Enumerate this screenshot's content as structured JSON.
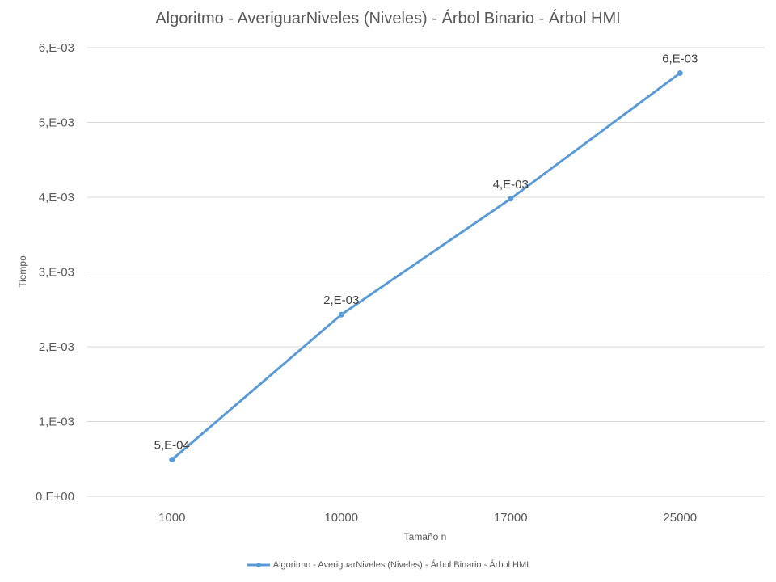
{
  "chart_data": {
    "type": "line",
    "title": "Algoritmo - AveriguarNiveles (Niveles)  - Árbol Binario - Árbol HMI",
    "xlabel": "Tamaño n",
    "ylabel": "Tiempo",
    "categories": [
      "1000",
      "10000",
      "17000",
      "25000"
    ],
    "series": [
      {
        "name": "Algoritmo - AveriguarNiveles (Niveles)  - Árbol Binario - Árbol HMI",
        "values": [
          0.00049,
          0.00243,
          0.00398,
          0.00566
        ],
        "data_labels": [
          "5,E-04",
          "2,E-03",
          "4,E-03",
          "6,E-03"
        ],
        "color": "#5b9bd5"
      }
    ],
    "ylim": [
      0,
      0.006
    ],
    "yticks": [
      0,
      0.001,
      0.002,
      0.003,
      0.004,
      0.005,
      0.006
    ],
    "ytick_labels": [
      "0,E+00",
      "1,E-03",
      "2,E-03",
      "3,E-03",
      "4,E-03",
      "5,E-03",
      "6,E-03"
    ],
    "grid": true,
    "gridline_color": "#d9d9d9",
    "legend_position": "bottom"
  }
}
